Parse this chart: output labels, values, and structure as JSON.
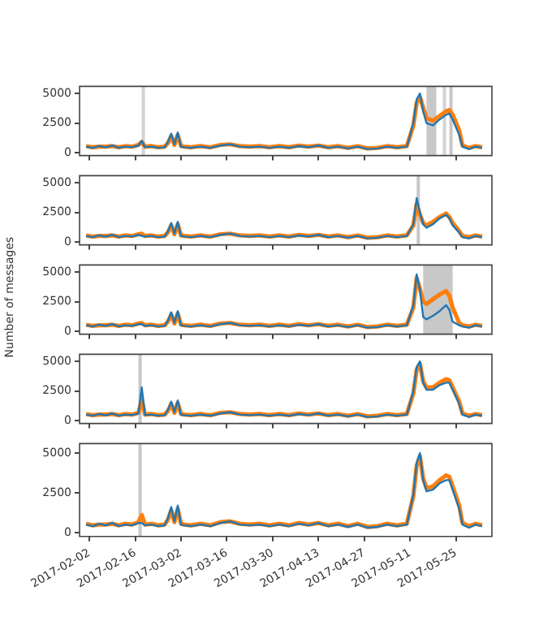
{
  "chart_data": [
    {
      "type": "line",
      "x": [
        "2017-02-01",
        "2017-02-03",
        "2017-02-05",
        "2017-02-07",
        "2017-02-09",
        "2017-02-11",
        "2017-02-13",
        "2017-02-15",
        "2017-02-17",
        "2017-02-18",
        "2017-02-19",
        "2017-02-21",
        "2017-02-23",
        "2017-02-25",
        "2017-02-26",
        "2017-02-27",
        "2017-02-28",
        "2017-03-01",
        "2017-03-02",
        "2017-03-03",
        "2017-03-05",
        "2017-03-08",
        "2017-03-11",
        "2017-03-14",
        "2017-03-17",
        "2017-03-20",
        "2017-03-23",
        "2017-03-26",
        "2017-03-29",
        "2017-04-01",
        "2017-04-04",
        "2017-04-07",
        "2017-04-10",
        "2017-04-13",
        "2017-04-16",
        "2017-04-19",
        "2017-04-22",
        "2017-04-25",
        "2017-04-28",
        "2017-05-01",
        "2017-05-04",
        "2017-05-07",
        "2017-05-10",
        "2017-05-12",
        "2017-05-13",
        "2017-05-14",
        "2017-05-15",
        "2017-05-16",
        "2017-05-18",
        "2017-05-20",
        "2017-05-22",
        "2017-05-23",
        "2017-05-24",
        "2017-05-26",
        "2017-05-27",
        "2017-05-29",
        "2017-05-31",
        "2017-06-02"
      ],
      "series": [
        {
          "color": "#1f77b4",
          "values": [
            500,
            400,
            550,
            450,
            600,
            400,
            500,
            450,
            600,
            1000,
            450,
            500,
            400,
            450,
            900,
            1600,
            700,
            1700,
            500,
            450,
            400,
            500,
            400,
            600,
            700,
            500,
            450,
            500,
            400,
            500,
            400,
            550,
            450,
            600,
            400,
            500,
            350,
            500,
            300,
            350,
            500,
            400,
            500,
            2500,
            4500,
            5000,
            3500,
            2500,
            2300,
            2800,
            3200,
            3300,
            2800,
            1500,
            500,
            300,
            500,
            400
          ]
        },
        {
          "color": "#ff7f0e",
          "values": [
            550,
            450,
            500,
            500,
            550,
            450,
            550,
            500,
            650,
            900,
            500,
            550,
            450,
            500,
            800,
            1400,
            650,
            1500,
            550,
            500,
            450,
            550,
            450,
            650,
            700,
            550,
            500,
            550,
            450,
            550,
            450,
            600,
            500,
            600,
            450,
            550,
            400,
            550,
            350,
            400,
            550,
            450,
            550,
            2300,
            4200,
            4700,
            3800,
            2900,
            2700,
            3100,
            3500,
            3600,
            3200,
            1900,
            600,
            400,
            550,
            450
          ]
        }
      ],
      "xlim": [
        "2017-01-30",
        "2017-06-05"
      ],
      "xticks": [
        "2017-02-02",
        "2017-02-16",
        "2017-03-02",
        "2017-03-16",
        "2017-03-30",
        "2017-04-13",
        "2017-04-27",
        "2017-05-11",
        "2017-05-25"
      ],
      "ylim": [
        -250,
        5600
      ],
      "yticks": [
        0,
        2500,
        5000
      ],
      "tick_labels": "y",
      "bands": [
        {
          "axis": "x",
          "from": "2017-02-18",
          "to": "2017-02-19",
          "color": "#d3d3d3"
        },
        {
          "axis": "x",
          "from": "2017-05-16",
          "to": "2017-05-19",
          "color": "#c8c8c8"
        },
        {
          "axis": "x",
          "from": "2017-05-21",
          "to": "2017-05-22",
          "color": "#d3d3d3"
        },
        {
          "axis": "x",
          "from": "2017-05-23",
          "to": "2017-05-24",
          "color": "#c8c8c8"
        }
      ]
    },
    {
      "type": "line",
      "x": [
        "2017-02-01",
        "2017-02-03",
        "2017-02-05",
        "2017-02-07",
        "2017-02-09",
        "2017-02-11",
        "2017-02-13",
        "2017-02-15",
        "2017-02-17",
        "2017-02-18",
        "2017-02-19",
        "2017-02-21",
        "2017-02-23",
        "2017-02-25",
        "2017-02-26",
        "2017-02-27",
        "2017-02-28",
        "2017-03-01",
        "2017-03-02",
        "2017-03-03",
        "2017-03-05",
        "2017-03-08",
        "2017-03-11",
        "2017-03-14",
        "2017-03-17",
        "2017-03-20",
        "2017-03-23",
        "2017-03-26",
        "2017-03-29",
        "2017-04-01",
        "2017-04-04",
        "2017-04-07",
        "2017-04-10",
        "2017-04-13",
        "2017-04-16",
        "2017-04-19",
        "2017-04-22",
        "2017-04-25",
        "2017-04-28",
        "2017-05-01",
        "2017-05-04",
        "2017-05-07",
        "2017-05-10",
        "2017-05-12",
        "2017-05-13",
        "2017-05-14",
        "2017-05-15",
        "2017-05-16",
        "2017-05-18",
        "2017-05-20",
        "2017-05-22",
        "2017-05-23",
        "2017-05-24",
        "2017-05-26",
        "2017-05-27",
        "2017-05-29",
        "2017-05-31",
        "2017-06-02"
      ],
      "series": [
        {
          "color": "#1f77b4",
          "values": [
            500,
            400,
            550,
            450,
            600,
            400,
            500,
            450,
            600,
            500,
            450,
            500,
            400,
            450,
            900,
            1600,
            700,
            1700,
            500,
            450,
            400,
            500,
            400,
            600,
            700,
            500,
            450,
            500,
            400,
            500,
            400,
            550,
            450,
            600,
            400,
            500,
            350,
            500,
            300,
            350,
            500,
            400,
            500,
            1500,
            3700,
            2500,
            1500,
            1200,
            1500,
            2000,
            2300,
            2000,
            1400,
            800,
            400,
            300,
            500,
            400
          ]
        },
        {
          "color": "#ff7f0e",
          "values": [
            550,
            450,
            500,
            500,
            550,
            450,
            550,
            500,
            650,
            700,
            500,
            550,
            450,
            500,
            800,
            1400,
            650,
            1500,
            550,
            500,
            450,
            550,
            450,
            650,
            700,
            550,
            500,
            550,
            450,
            550,
            450,
            600,
            500,
            600,
            450,
            550,
            400,
            550,
            350,
            400,
            550,
            450,
            550,
            1400,
            3200,
            2300,
            1600,
            1400,
            1700,
            2100,
            2400,
            2100,
            1600,
            900,
            500,
            400,
            550,
            450
          ]
        }
      ],
      "xlim": [
        "2017-01-30",
        "2017-06-05"
      ],
      "xticks": [
        "2017-02-02",
        "2017-02-16",
        "2017-03-02",
        "2017-03-16",
        "2017-03-30",
        "2017-04-13",
        "2017-04-27",
        "2017-05-11",
        "2017-05-25"
      ],
      "ylim": [
        -250,
        5600
      ],
      "yticks": [
        0,
        2500,
        5000
      ],
      "tick_labels": "y",
      "bands": [
        {
          "axis": "x",
          "from": "2017-05-13",
          "to": "2017-05-14",
          "color": "#c8c8c8"
        }
      ]
    },
    {
      "type": "line",
      "ylabel": "Number of messages",
      "x": [
        "2017-02-01",
        "2017-02-03",
        "2017-02-05",
        "2017-02-07",
        "2017-02-09",
        "2017-02-11",
        "2017-02-13",
        "2017-02-15",
        "2017-02-17",
        "2017-02-18",
        "2017-02-19",
        "2017-02-21",
        "2017-02-23",
        "2017-02-25",
        "2017-02-26",
        "2017-02-27",
        "2017-02-28",
        "2017-03-01",
        "2017-03-02",
        "2017-03-03",
        "2017-03-05",
        "2017-03-08",
        "2017-03-11",
        "2017-03-14",
        "2017-03-17",
        "2017-03-20",
        "2017-03-23",
        "2017-03-26",
        "2017-03-29",
        "2017-04-01",
        "2017-04-04",
        "2017-04-07",
        "2017-04-10",
        "2017-04-13",
        "2017-04-16",
        "2017-04-19",
        "2017-04-22",
        "2017-04-25",
        "2017-04-28",
        "2017-05-01",
        "2017-05-04",
        "2017-05-07",
        "2017-05-10",
        "2017-05-12",
        "2017-05-13",
        "2017-05-14",
        "2017-05-15",
        "2017-05-16",
        "2017-05-18",
        "2017-05-20",
        "2017-05-22",
        "2017-05-23",
        "2017-05-24",
        "2017-05-26",
        "2017-05-27",
        "2017-05-29",
        "2017-05-31",
        "2017-06-02"
      ],
      "series": [
        {
          "color": "#1f77b4",
          "values": [
            500,
            400,
            550,
            450,
            600,
            400,
            500,
            450,
            600,
            600,
            450,
            500,
            400,
            450,
            900,
            1600,
            700,
            1700,
            500,
            450,
            400,
            500,
            400,
            600,
            700,
            500,
            450,
            500,
            400,
            500,
            400,
            550,
            450,
            600,
            400,
            500,
            350,
            500,
            300,
            350,
            500,
            400,
            500,
            2200,
            4800,
            3500,
            1200,
            1000,
            1300,
            1700,
            2200,
            1800,
            800,
            500,
            400,
            300,
            500,
            400
          ]
        },
        {
          "color": "#ff7f0e",
          "values": [
            550,
            450,
            500,
            500,
            550,
            450,
            550,
            500,
            650,
            700,
            500,
            550,
            450,
            500,
            800,
            1400,
            650,
            1500,
            550,
            500,
            450,
            550,
            450,
            650,
            700,
            550,
            500,
            550,
            450,
            550,
            450,
            600,
            500,
            600,
            450,
            550,
            400,
            550,
            350,
            400,
            550,
            450,
            550,
            2000,
            4500,
            3600,
            2500,
            2300,
            2700,
            3100,
            3400,
            3000,
            2000,
            700,
            500,
            400,
            550,
            450
          ]
        }
      ],
      "xlim": [
        "2017-01-30",
        "2017-06-05"
      ],
      "xticks": [
        "2017-02-02",
        "2017-02-16",
        "2017-03-02",
        "2017-03-16",
        "2017-03-30",
        "2017-04-13",
        "2017-04-27",
        "2017-05-11",
        "2017-05-25"
      ],
      "ylim": [
        -250,
        5600
      ],
      "yticks": [
        0,
        2500,
        5000
      ],
      "tick_labels": "y",
      "bands": [
        {
          "axis": "x",
          "from": "2017-05-15",
          "to": "2017-05-24",
          "color": "#c8c8c8"
        }
      ]
    },
    {
      "type": "line",
      "x": [
        "2017-02-01",
        "2017-02-03",
        "2017-02-05",
        "2017-02-07",
        "2017-02-09",
        "2017-02-11",
        "2017-02-13",
        "2017-02-15",
        "2017-02-17",
        "2017-02-18",
        "2017-02-19",
        "2017-02-21",
        "2017-02-23",
        "2017-02-25",
        "2017-02-26",
        "2017-02-27",
        "2017-02-28",
        "2017-03-01",
        "2017-03-02",
        "2017-03-03",
        "2017-03-05",
        "2017-03-08",
        "2017-03-11",
        "2017-03-14",
        "2017-03-17",
        "2017-03-20",
        "2017-03-23",
        "2017-03-26",
        "2017-03-29",
        "2017-04-01",
        "2017-04-04",
        "2017-04-07",
        "2017-04-10",
        "2017-04-13",
        "2017-04-16",
        "2017-04-19",
        "2017-04-22",
        "2017-04-25",
        "2017-04-28",
        "2017-05-01",
        "2017-05-04",
        "2017-05-07",
        "2017-05-10",
        "2017-05-12",
        "2017-05-13",
        "2017-05-14",
        "2017-05-15",
        "2017-05-16",
        "2017-05-18",
        "2017-05-20",
        "2017-05-22",
        "2017-05-23",
        "2017-05-24",
        "2017-05-26",
        "2017-05-27",
        "2017-05-29",
        "2017-05-31",
        "2017-06-02"
      ],
      "series": [
        {
          "color": "#1f77b4",
          "values": [
            500,
            400,
            550,
            450,
            600,
            400,
            500,
            450,
            600,
            2800,
            450,
            500,
            400,
            450,
            900,
            1600,
            700,
            1700,
            500,
            450,
            400,
            500,
            400,
            600,
            700,
            500,
            450,
            500,
            400,
            500,
            400,
            550,
            450,
            600,
            400,
            500,
            350,
            500,
            300,
            350,
            500,
            400,
            500,
            2500,
            4500,
            5000,
            3200,
            2600,
            2600,
            3000,
            3200,
            3200,
            2600,
            1400,
            500,
            300,
            500,
            400
          ]
        },
        {
          "color": "#ff7f0e",
          "values": [
            550,
            450,
            500,
            500,
            550,
            450,
            550,
            500,
            650,
            1800,
            500,
            550,
            450,
            500,
            800,
            1400,
            650,
            1500,
            550,
            500,
            450,
            550,
            450,
            650,
            700,
            550,
            500,
            550,
            450,
            550,
            450,
            600,
            500,
            600,
            450,
            550,
            400,
            550,
            350,
            400,
            550,
            450,
            550,
            2300,
            4300,
            4800,
            3300,
            2800,
            2800,
            3200,
            3500,
            3400,
            2800,
            1600,
            600,
            400,
            550,
            450
          ]
        }
      ],
      "xlim": [
        "2017-01-30",
        "2017-06-05"
      ],
      "xticks": [
        "2017-02-02",
        "2017-02-16",
        "2017-03-02",
        "2017-03-16",
        "2017-03-30",
        "2017-04-13",
        "2017-04-27",
        "2017-05-11",
        "2017-05-25"
      ],
      "ylim": [
        -250,
        5600
      ],
      "yticks": [
        0,
        2500,
        5000
      ],
      "tick_labels": "y",
      "bands": [
        {
          "axis": "x",
          "from": "2017-02-17",
          "to": "2017-02-18",
          "color": "#c8c8c8"
        }
      ]
    },
    {
      "type": "line",
      "x": [
        "2017-02-01",
        "2017-02-03",
        "2017-02-05",
        "2017-02-07",
        "2017-02-09",
        "2017-02-11",
        "2017-02-13",
        "2017-02-15",
        "2017-02-17",
        "2017-02-18",
        "2017-02-19",
        "2017-02-21",
        "2017-02-23",
        "2017-02-25",
        "2017-02-26",
        "2017-02-27",
        "2017-02-28",
        "2017-03-01",
        "2017-03-02",
        "2017-03-03",
        "2017-03-05",
        "2017-03-08",
        "2017-03-11",
        "2017-03-14",
        "2017-03-17",
        "2017-03-20",
        "2017-03-23",
        "2017-03-26",
        "2017-03-29",
        "2017-04-01",
        "2017-04-04",
        "2017-04-07",
        "2017-04-10",
        "2017-04-13",
        "2017-04-16",
        "2017-04-19",
        "2017-04-22",
        "2017-04-25",
        "2017-04-28",
        "2017-05-01",
        "2017-05-04",
        "2017-05-07",
        "2017-05-10",
        "2017-05-12",
        "2017-05-13",
        "2017-05-14",
        "2017-05-15",
        "2017-05-16",
        "2017-05-18",
        "2017-05-20",
        "2017-05-22",
        "2017-05-23",
        "2017-05-24",
        "2017-05-26",
        "2017-05-27",
        "2017-05-29",
        "2017-05-31",
        "2017-06-02"
      ],
      "series": [
        {
          "color": "#1f77b4",
          "values": [
            500,
            400,
            550,
            450,
            600,
            400,
            500,
            450,
            600,
            600,
            450,
            500,
            400,
            450,
            900,
            1600,
            700,
            1700,
            500,
            450,
            400,
            500,
            400,
            600,
            700,
            500,
            450,
            500,
            400,
            500,
            400,
            550,
            450,
            600,
            400,
            500,
            350,
            500,
            300,
            350,
            500,
            400,
            500,
            2400,
            4400,
            5000,
            3300,
            2600,
            2700,
            3100,
            3300,
            3300,
            2700,
            1500,
            500,
            300,
            500,
            400
          ]
        },
        {
          "color": "#ff7f0e",
          "values": [
            550,
            450,
            500,
            500,
            550,
            450,
            550,
            500,
            650,
            1100,
            500,
            550,
            450,
            500,
            800,
            1400,
            650,
            1500,
            550,
            500,
            450,
            550,
            450,
            650,
            700,
            550,
            500,
            550,
            450,
            550,
            450,
            600,
            500,
            600,
            450,
            550,
            400,
            550,
            350,
            400,
            550,
            450,
            550,
            2300,
            4200,
            4800,
            3400,
            2800,
            2900,
            3300,
            3600,
            3500,
            2900,
            1700,
            600,
            400,
            550,
            450
          ]
        }
      ],
      "xlim": [
        "2017-01-30",
        "2017-06-05"
      ],
      "xticks": [
        "2017-02-02",
        "2017-02-16",
        "2017-03-02",
        "2017-03-16",
        "2017-03-30",
        "2017-04-13",
        "2017-04-27",
        "2017-05-11",
        "2017-05-25"
      ],
      "ylim": [
        -250,
        5600
      ],
      "yticks": [
        0,
        2500,
        5000
      ],
      "bands": [
        {
          "axis": "x",
          "from": "2017-02-17",
          "to": "2017-02-18",
          "color": "#c8c8c8"
        }
      ]
    }
  ]
}
